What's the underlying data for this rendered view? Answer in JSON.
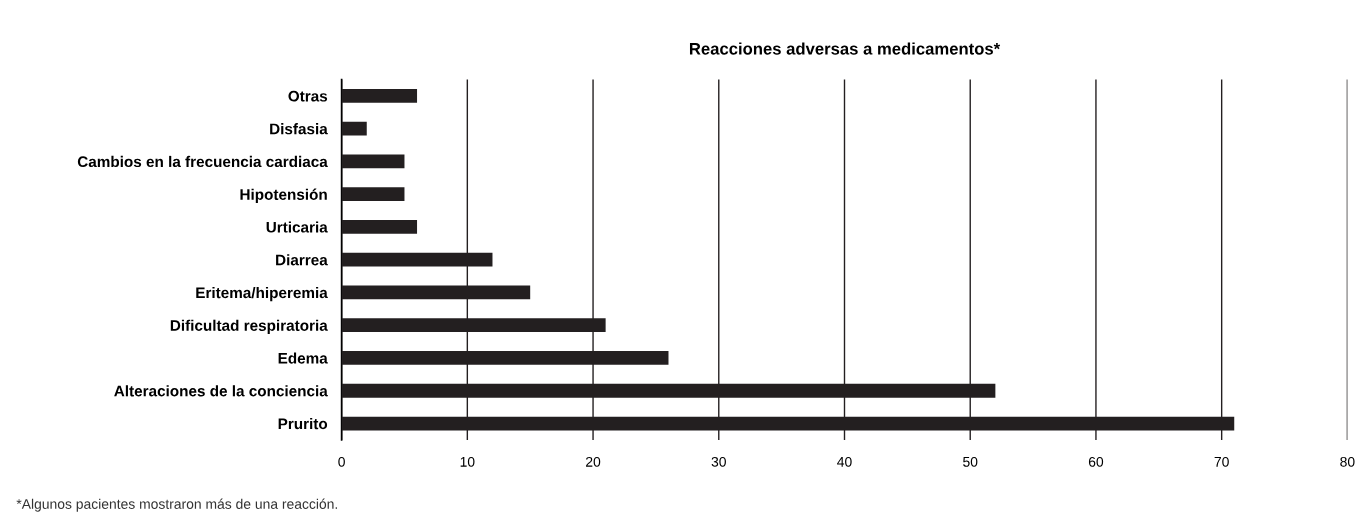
{
  "chart_data": {
    "type": "bar",
    "orientation": "horizontal",
    "title": "Reacciones adversas a medicamentos*",
    "categories": [
      "Otras",
      "Disfasia",
      "Cambios en la frecuencia cardiaca",
      "Hipotensión",
      "Urticaria",
      "Diarrea",
      "Eritema/hiperemia",
      "Dificultad respiratoria",
      "Edema",
      "Alteraciones de la conciencia",
      "Prurito"
    ],
    "values": [
      6,
      2,
      5,
      5,
      6,
      12,
      15,
      21,
      26,
      52,
      71
    ],
    "color": "#231f20",
    "xlim": [
      0,
      80
    ],
    "xticks": [
      0,
      10,
      20,
      30,
      40,
      50,
      60,
      70,
      80
    ],
    "grid": "x",
    "legend": false,
    "annotations": [
      "*Algunos pacientes mostraron más de una reacción."
    ]
  }
}
